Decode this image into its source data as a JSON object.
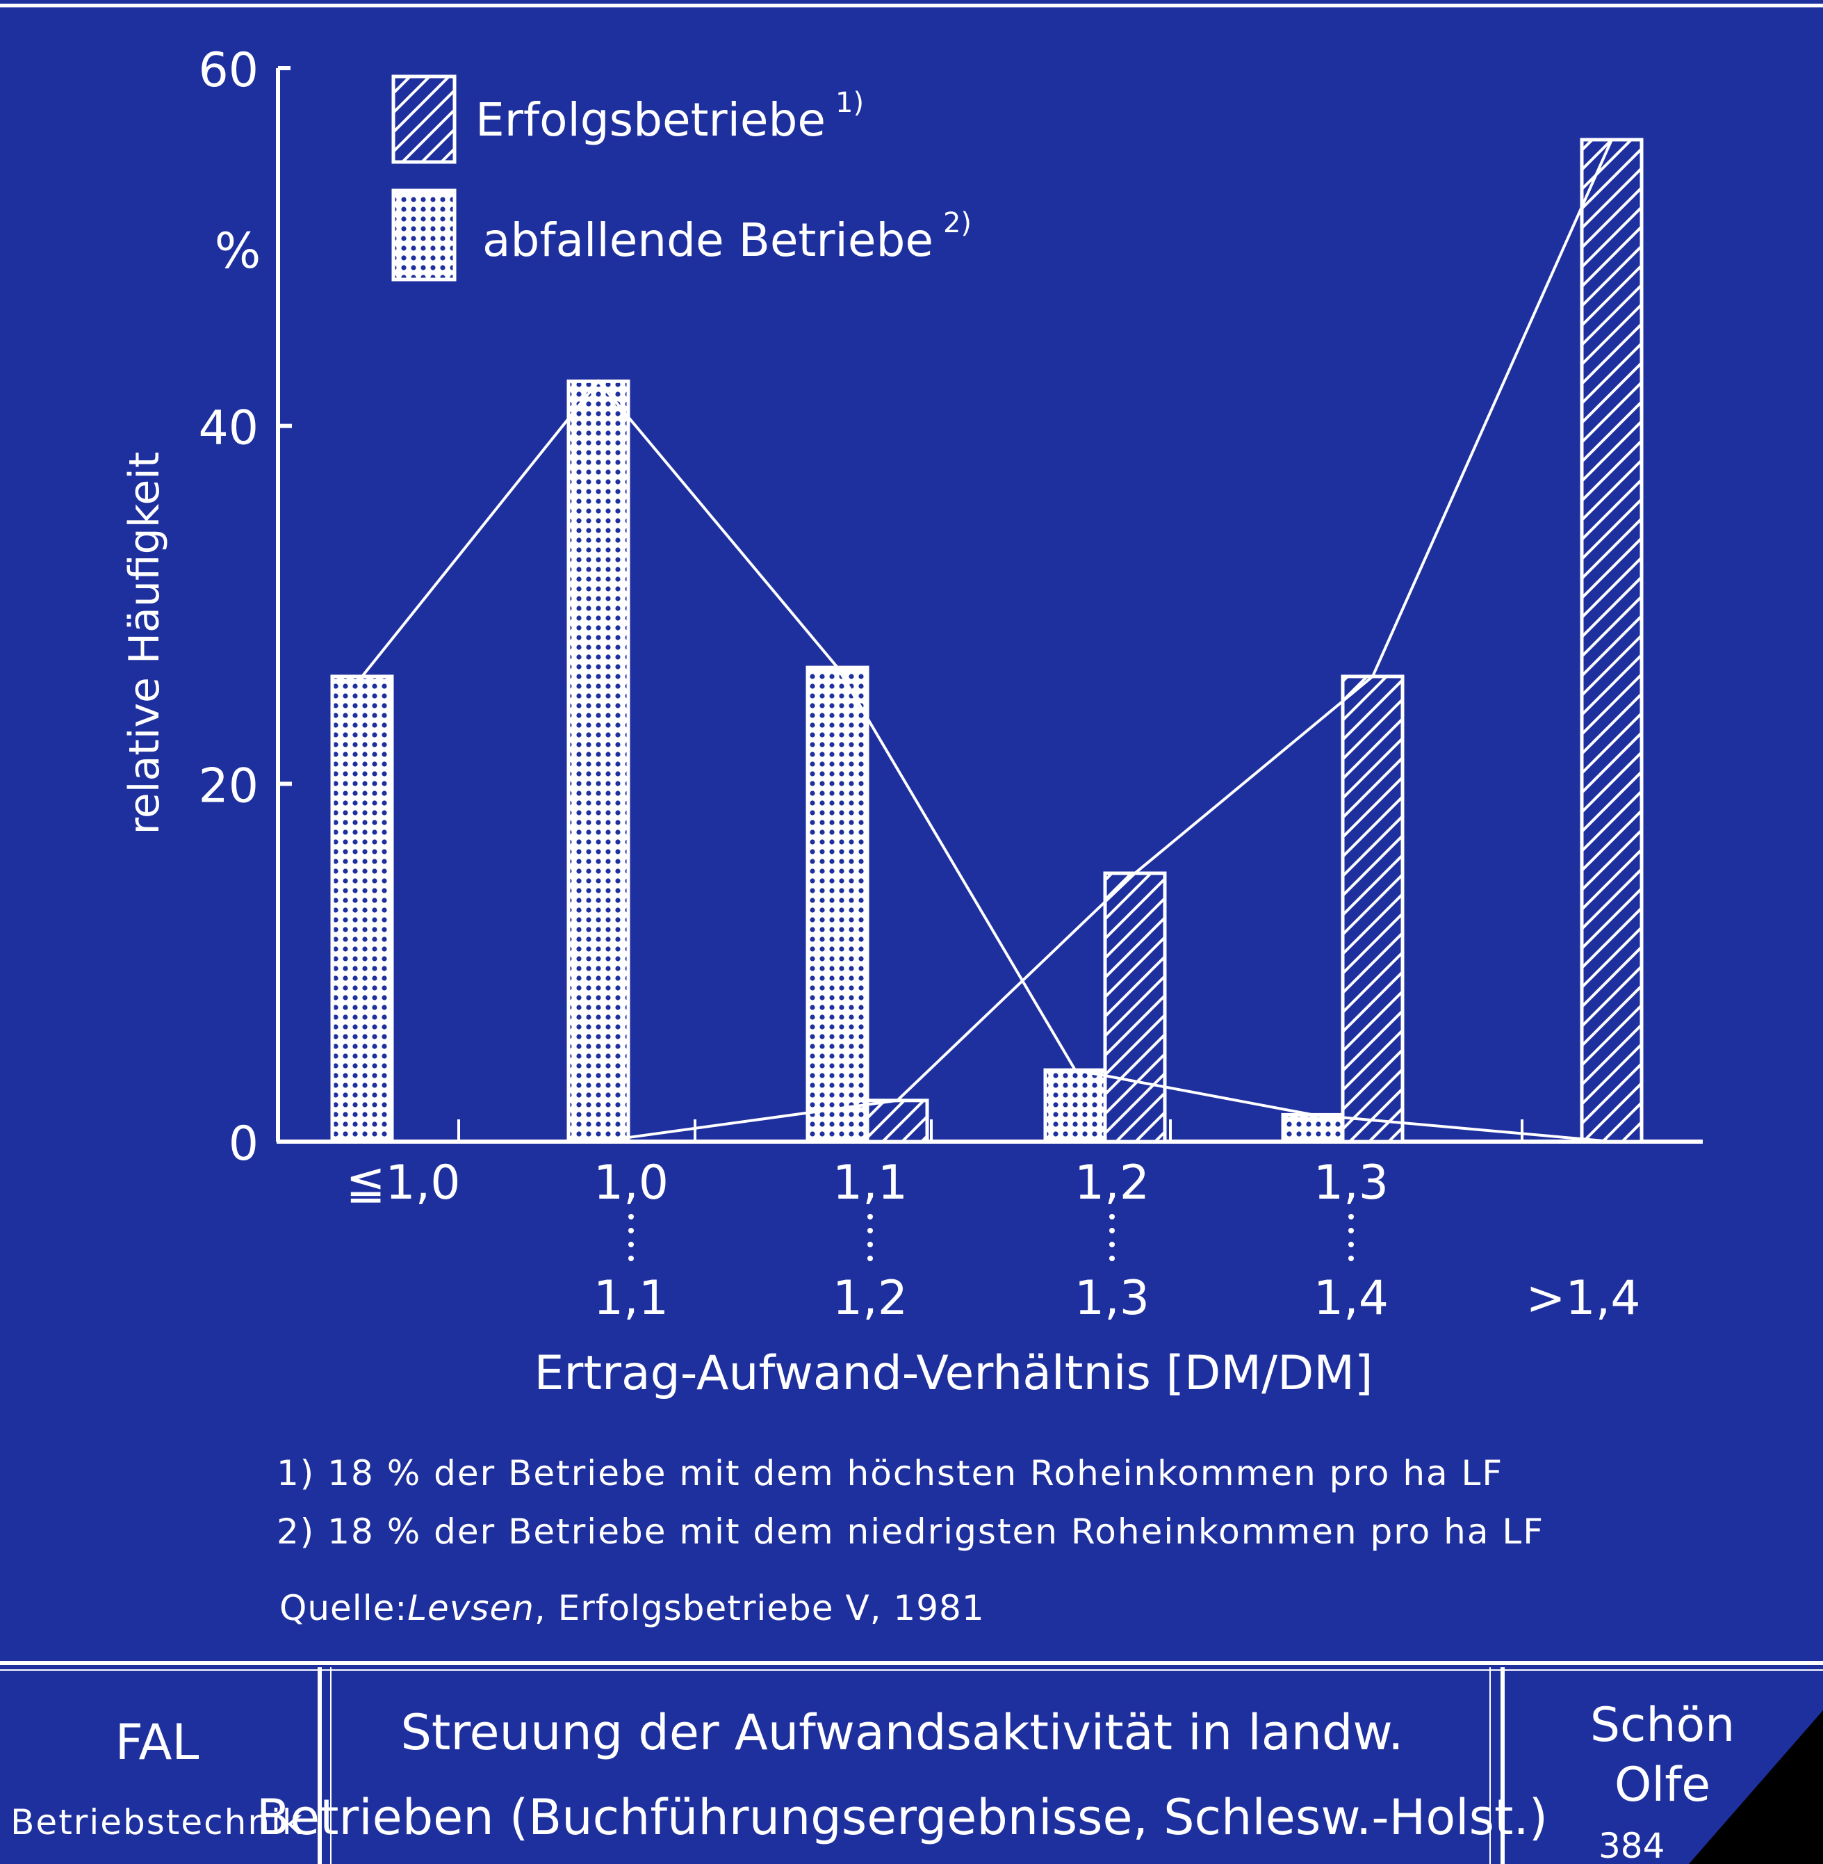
{
  "colors": {
    "background": "#1e2f9e",
    "ink": "#ffffff"
  },
  "chart_data": {
    "type": "bar",
    "ylabel": "relative Häufigkeit",
    "yunit": "%",
    "xlabel": "Ertrag-Aufwand-Verhältnis [DM/DM]",
    "ylim": [
      0,
      60
    ],
    "yticks": [
      "0",
      "20",
      "40",
      "60"
    ],
    "categories": [
      {
        "top": "≦1,0",
        "bottom": ""
      },
      {
        "top": "1,0",
        "bottom": "1,1"
      },
      {
        "top": "1,1",
        "bottom": "1,2"
      },
      {
        "top": "1,2",
        "bottom": "1,3"
      },
      {
        "top": "1,3",
        "bottom": "1,4"
      },
      {
        "top": "",
        "bottom": ">1,4"
      }
    ],
    "legend_position": "top-left",
    "series": [
      {
        "name": "Erfolgsbetriebe",
        "marker": "1)",
        "pattern": "hatch",
        "values": [
          0,
          0,
          2.3,
          15,
          26,
          56
        ]
      },
      {
        "name": "abfallende Betriebe",
        "marker": "2)",
        "pattern": "dots",
        "values": [
          26,
          42.5,
          26.5,
          4,
          1.5,
          0
        ]
      }
    ],
    "footnotes": [
      "1) 18 % der Betriebe mit dem höchsten Roheinkommen pro ha LF",
      "2) 18 % der Betriebe mit dem niedrigsten Roheinkommen pro ha LF"
    ],
    "source": {
      "label": "Quelle:",
      "author": "Levsen",
      "rest": ", Erfolgsbetriebe Ⅴ, 1981"
    }
  },
  "footer": {
    "left_title": "FAL",
    "left_sub": "Betriebstechnik",
    "title_line1": "Streuung der Aufwandsaktivität in landw.",
    "title_line2": "Betrieben (Buchführungsergebnisse, Schlesw.-Holst.)",
    "author_line1": "Schön",
    "author_line2": "Olfe",
    "number": "384 "
  }
}
